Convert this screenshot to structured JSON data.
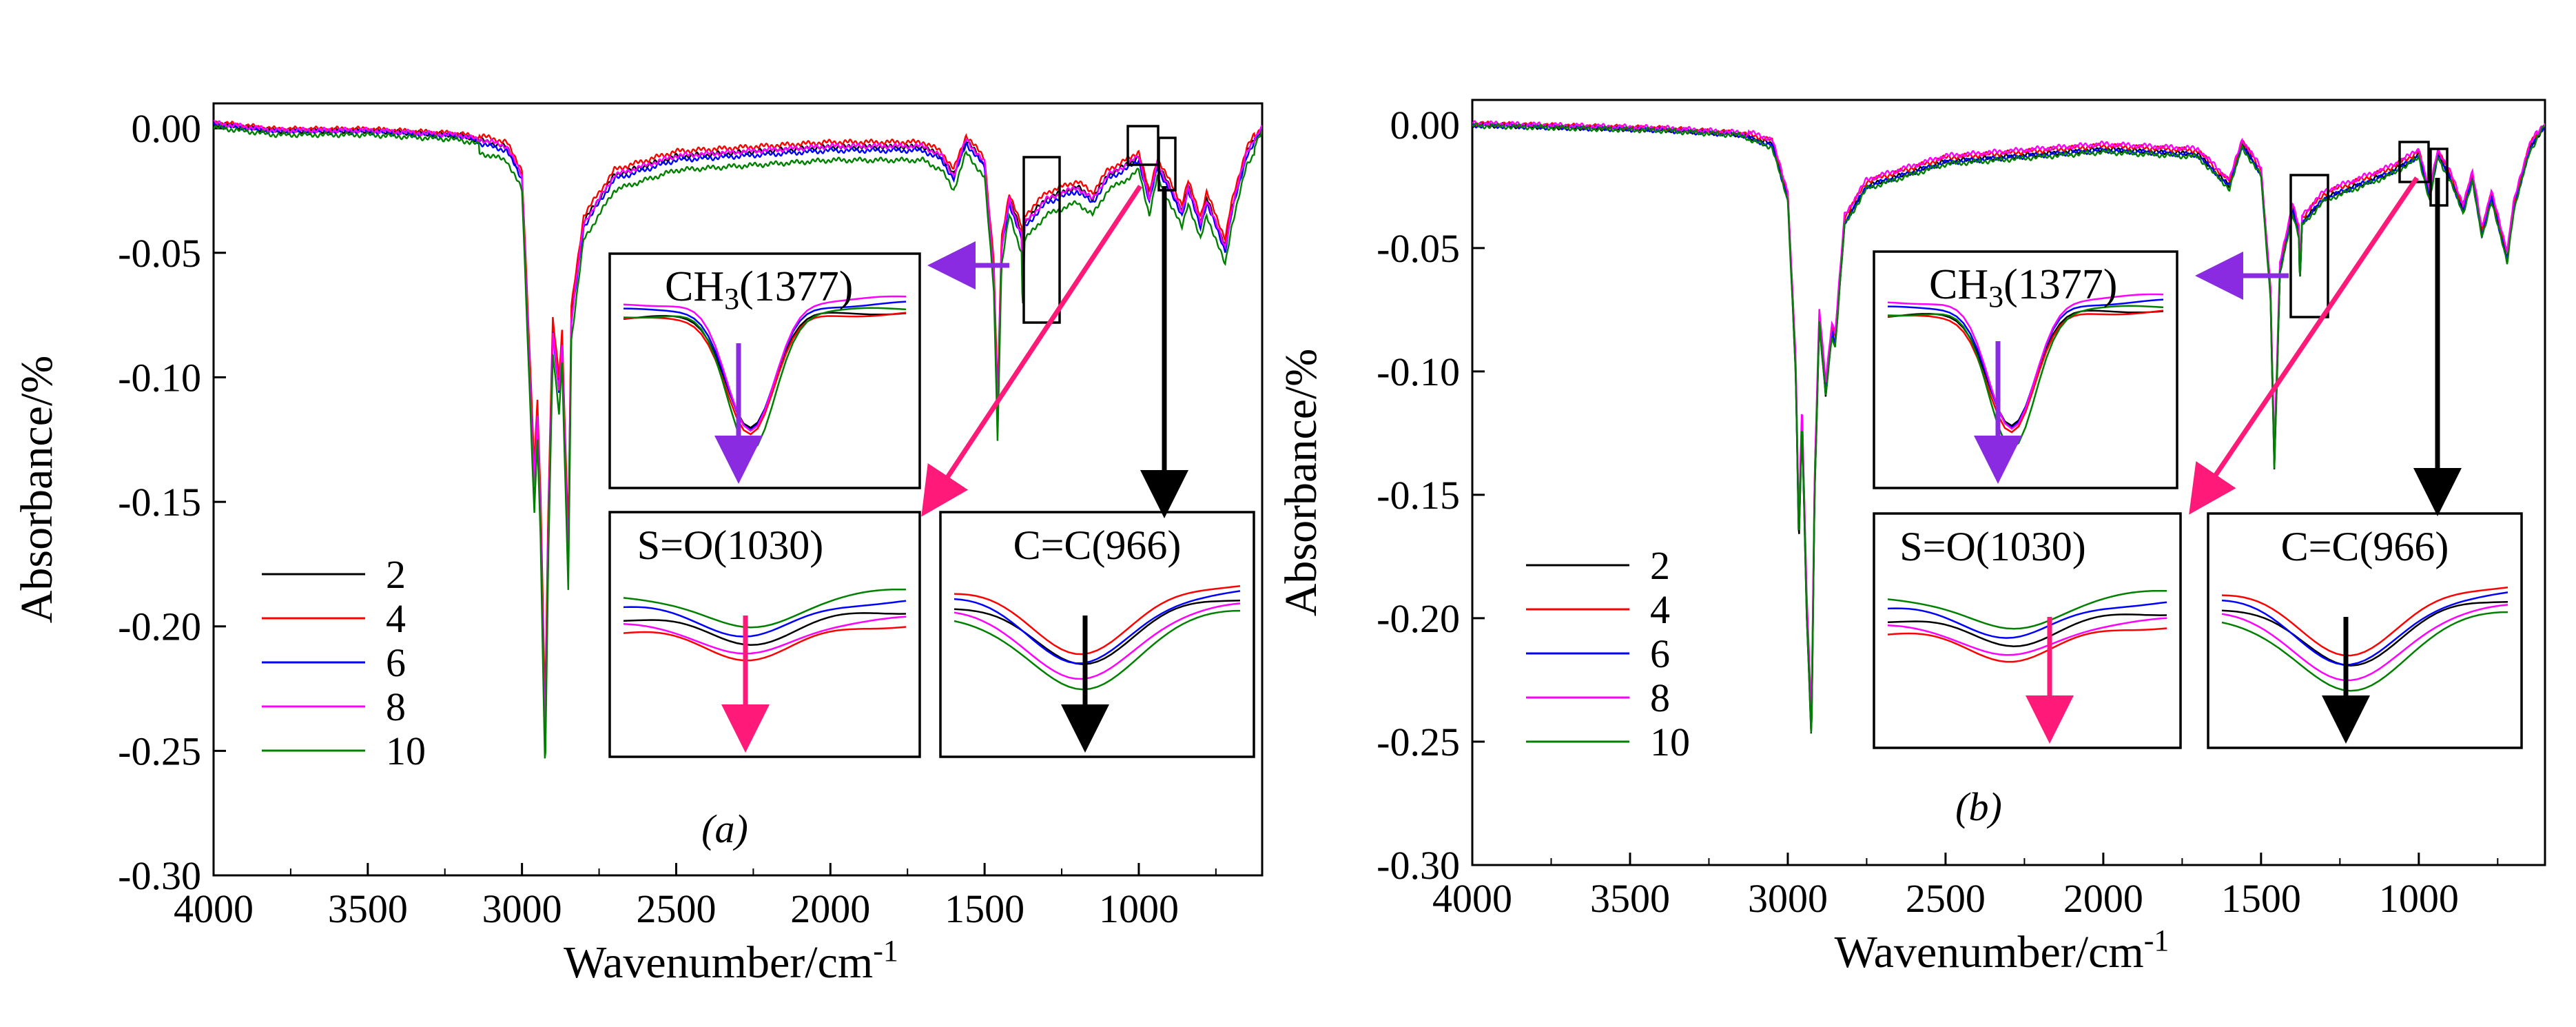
{
  "colors": {
    "2": "#000000",
    "4": "#ff0000",
    "6": "#0000ff",
    "8": "#ff00ff",
    "10": "#008000",
    "ch3_arrow": "#8a2be2",
    "so_arrow": "#ff1a7a",
    "cc_arrow": "#000000"
  },
  "chart_data": [
    {
      "panel_label": "(a)",
      "type": "line",
      "xlabel": "Wavenumber/cm-1",
      "ylabel": "Absorbance/%",
      "xlim": [
        4000,
        600
      ],
      "ylim": [
        -0.3,
        0.01
      ],
      "xticks": [
        "4000",
        "3500",
        "3000",
        "2500",
        "2000",
        "1500",
        "1000"
      ],
      "yticks": [
        "0.00",
        "-0.05",
        "-0.10",
        "-0.15",
        "-0.20",
        "-0.25",
        "-0.30"
      ],
      "series": [
        {
          "name": "2",
          "offset": 0.0,
          "scale": 0.94
        },
        {
          "name": "4",
          "offset": 0.003,
          "scale": 0.92
        },
        {
          "name": "6",
          "offset": -0.002,
          "scale": 0.96
        },
        {
          "name": "8",
          "offset": 0.001,
          "scale": 0.97
        },
        {
          "name": "10",
          "offset": -0.008,
          "scale": 1.0
        }
      ],
      "base_spectrum": [
        [
          4000,
          0.002
        ],
        [
          3800,
          -0.001
        ],
        [
          3500,
          -0.001
        ],
        [
          3200,
          -0.003
        ],
        [
          3050,
          -0.008
        ],
        [
          3000,
          -0.02
        ],
        [
          2960,
          -0.15
        ],
        [
          2950,
          -0.12
        ],
        [
          2940,
          -0.16
        ],
        [
          2925,
          -0.255
        ],
        [
          2915,
          -0.17
        ],
        [
          2900,
          -0.085
        ],
        [
          2880,
          -0.11
        ],
        [
          2870,
          -0.09
        ],
        [
          2850,
          -0.18
        ],
        [
          2840,
          -0.08
        ],
        [
          2800,
          -0.04
        ],
        [
          2700,
          -0.02
        ],
        [
          2500,
          -0.012
        ],
        [
          2000,
          -0.008
        ],
        [
          1700,
          -0.008
        ],
        [
          1640,
          -0.012
        ],
        [
          1600,
          -0.02
        ],
        [
          1560,
          -0.005
        ],
        [
          1500,
          -0.015
        ],
        [
          1470,
          -0.06
        ],
        [
          1458,
          -0.12
        ],
        [
          1445,
          -0.05
        ],
        [
          1420,
          -0.03
        ],
        [
          1380,
          -0.045
        ],
        [
          1377,
          -0.07
        ],
        [
          1370,
          -0.04
        ],
        [
          1300,
          -0.03
        ],
        [
          1200,
          -0.025
        ],
        [
          1150,
          -0.03
        ],
        [
          1100,
          -0.02
        ],
        [
          1030,
          -0.015
        ],
        [
          1000,
          -0.012
        ],
        [
          966,
          -0.03
        ],
        [
          940,
          -0.015
        ],
        [
          900,
          -0.025
        ],
        [
          860,
          -0.035
        ],
        [
          840,
          -0.025
        ],
        [
          800,
          -0.04
        ],
        [
          780,
          -0.03
        ],
        [
          720,
          -0.05
        ],
        [
          700,
          -0.035
        ],
        [
          650,
          -0.01
        ],
        [
          600,
          0.0
        ]
      ],
      "legend": [
        "2",
        "4",
        "6",
        "8",
        "10"
      ],
      "annotations": {
        "ch3": "CH3(1377)",
        "so": "S=O(1030)",
        "cc": "C=C(966)"
      }
    },
    {
      "panel_label": "(b)",
      "type": "line",
      "xlabel": "Wavenumber/cm-1",
      "ylabel": "Absorbance/%",
      "xlim": [
        4000,
        600
      ],
      "ylim": [
        -0.3,
        0.01
      ],
      "xticks": [
        "4000",
        "3500",
        "3000",
        "2500",
        "2000",
        "1500",
        "1000"
      ],
      "yticks": [
        "0.00",
        "-0.05",
        "-0.10",
        "-0.15",
        "-0.20",
        "-0.25",
        "-0.30"
      ],
      "series": [
        {
          "name": "2",
          "offset": 0.0,
          "scale": 1.0
        },
        {
          "name": "4",
          "offset": 0.002,
          "scale": 0.97
        },
        {
          "name": "6",
          "offset": -0.001,
          "scale": 0.98
        },
        {
          "name": "8",
          "offset": 0.003,
          "scale": 0.96
        },
        {
          "name": "10",
          "offset": -0.002,
          "scale": 0.99
        }
      ],
      "base_spectrum": [
        [
          4000,
          0.0
        ],
        [
          3700,
          -0.001
        ],
        [
          3400,
          -0.002
        ],
        [
          3150,
          -0.004
        ],
        [
          3050,
          -0.008
        ],
        [
          3000,
          -0.03
        ],
        [
          2975,
          -0.1
        ],
        [
          2965,
          -0.17
        ],
        [
          2955,
          -0.12
        ],
        [
          2940,
          -0.2
        ],
        [
          2925,
          -0.25
        ],
        [
          2915,
          -0.15
        ],
        [
          2900,
          -0.08
        ],
        [
          2880,
          -0.11
        ],
        [
          2860,
          -0.085
        ],
        [
          2850,
          -0.09
        ],
        [
          2820,
          -0.04
        ],
        [
          2750,
          -0.025
        ],
        [
          2500,
          -0.015
        ],
        [
          2000,
          -0.01
        ],
        [
          1700,
          -0.012
        ],
        [
          1640,
          -0.02
        ],
        [
          1600,
          -0.025
        ],
        [
          1560,
          -0.008
        ],
        [
          1500,
          -0.02
        ],
        [
          1470,
          -0.07
        ],
        [
          1458,
          -0.14
        ],
        [
          1440,
          -0.06
        ],
        [
          1400,
          -0.035
        ],
        [
          1380,
          -0.045
        ],
        [
          1377,
          -0.065
        ],
        [
          1370,
          -0.04
        ],
        [
          1300,
          -0.03
        ],
        [
          1200,
          -0.025
        ],
        [
          1100,
          -0.02
        ],
        [
          1030,
          -0.015
        ],
        [
          1000,
          -0.012
        ],
        [
          966,
          -0.03
        ],
        [
          940,
          -0.012
        ],
        [
          900,
          -0.022
        ],
        [
          860,
          -0.035
        ],
        [
          830,
          -0.022
        ],
        [
          800,
          -0.045
        ],
        [
          770,
          -0.03
        ],
        [
          720,
          -0.055
        ],
        [
          700,
          -0.035
        ],
        [
          650,
          -0.01
        ],
        [
          600,
          0.0
        ]
      ],
      "legend": [
        "2",
        "4",
        "6",
        "8",
        "10"
      ],
      "annotations": {
        "ch3": "CH3(1377)",
        "so": "S=O(1030)",
        "cc": "C=C(966)"
      }
    }
  ]
}
